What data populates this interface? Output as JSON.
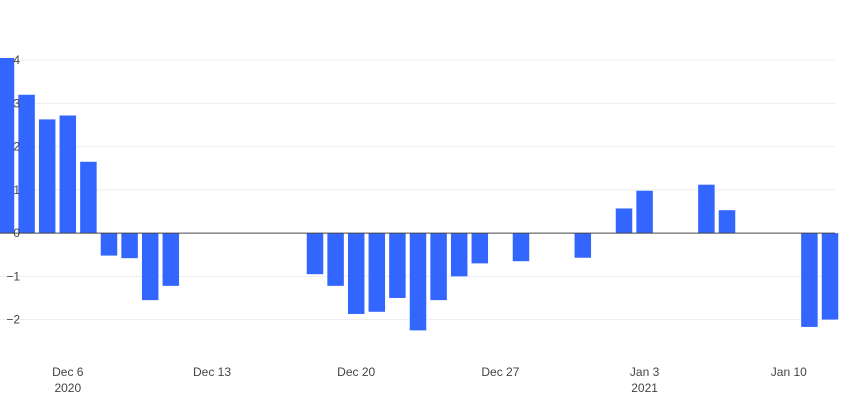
{
  "chart_data": {
    "type": "bar",
    "title": "",
    "xlabel": "",
    "ylabel": "",
    "ylim": [
      -2.75,
      4.05
    ],
    "yticks": [
      -2,
      -1,
      0,
      1,
      2,
      3,
      4
    ],
    "ytick_labels": [
      "−2",
      "−1",
      "0",
      "1",
      "2",
      "3",
      "4"
    ],
    "x_start": "2020-12-03",
    "x_end": "2021-01-13",
    "xticks": [
      {
        "date": "2020-12-06",
        "label": "Dec 6",
        "sublabel": "2020"
      },
      {
        "date": "2020-12-13",
        "label": "Dec 13",
        "sublabel": ""
      },
      {
        "date": "2020-12-20",
        "label": "Dec 20",
        "sublabel": ""
      },
      {
        "date": "2020-12-27",
        "label": "Dec 27",
        "sublabel": ""
      },
      {
        "date": "2021-01-03",
        "label": "Jan 3",
        "sublabel": "2021"
      },
      {
        "date": "2021-01-10",
        "label": "Jan 10",
        "sublabel": ""
      }
    ],
    "bar_color": "#3366FF",
    "grid": true,
    "points": [
      {
        "date": "2020-12-03",
        "value": 4.1
      },
      {
        "date": "2020-12-04",
        "value": 3.2
      },
      {
        "date": "2020-12-05",
        "value": 2.63
      },
      {
        "date": "2020-12-06",
        "value": 2.72
      },
      {
        "date": "2020-12-07",
        "value": 1.65
      },
      {
        "date": "2020-12-08",
        "value": -0.52
      },
      {
        "date": "2020-12-09",
        "value": -0.58
      },
      {
        "date": "2020-12-10",
        "value": -1.55
      },
      {
        "date": "2020-12-11",
        "value": -1.22
      },
      {
        "date": "2020-12-18",
        "value": -0.95
      },
      {
        "date": "2020-12-19",
        "value": -1.22
      },
      {
        "date": "2020-12-20",
        "value": -1.87
      },
      {
        "date": "2020-12-21",
        "value": -1.82
      },
      {
        "date": "2020-12-22",
        "value": -1.5
      },
      {
        "date": "2020-12-23",
        "value": -2.25
      },
      {
        "date": "2020-12-24",
        "value": -1.55
      },
      {
        "date": "2020-12-25",
        "value": -1.0
      },
      {
        "date": "2020-12-26",
        "value": -0.7
      },
      {
        "date": "2020-12-28",
        "value": -0.65
      },
      {
        "date": "2020-12-31",
        "value": -0.57
      },
      {
        "date": "2021-01-02",
        "value": 0.57
      },
      {
        "date": "2021-01-03",
        "value": 0.98
      },
      {
        "date": "2021-01-06",
        "value": 1.12
      },
      {
        "date": "2021-01-07",
        "value": 0.53
      },
      {
        "date": "2021-01-11",
        "value": -2.17
      },
      {
        "date": "2021-01-12",
        "value": -2.0
      }
    ]
  }
}
